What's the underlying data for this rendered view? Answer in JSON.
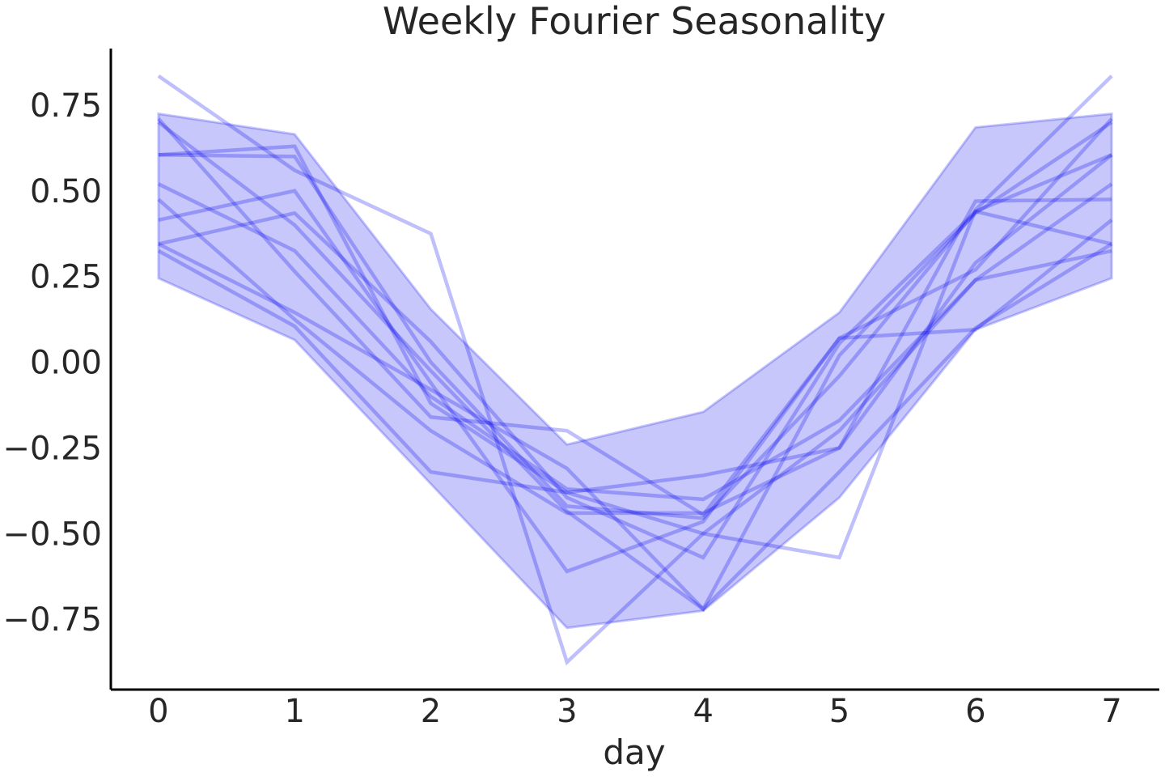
{
  "chart_data": {
    "type": "line",
    "title": "Weekly Fourier Seasonality",
    "xlabel": "day",
    "ylabel": "",
    "x": [
      0,
      1,
      2,
      3,
      4,
      5,
      6,
      7
    ],
    "xlim": [
      -0.35,
      7.35
    ],
    "ylim": [
      -0.955,
      0.915
    ],
    "x_ticks": [
      "0",
      "1",
      "2",
      "3",
      "4",
      "5",
      "6",
      "7"
    ],
    "y_ticks": [
      {
        "value": 0.75,
        "label": "0.75"
      },
      {
        "value": 0.5,
        "label": "0.50"
      },
      {
        "value": 0.25,
        "label": "0.25"
      },
      {
        "value": 0.0,
        "label": "0.00"
      },
      {
        "value": -0.25,
        "label": "−0.25"
      },
      {
        "value": -0.5,
        "label": "−0.50"
      },
      {
        "value": -0.75,
        "label": "−0.75"
      }
    ],
    "grid": false,
    "legend": "none",
    "colors": {
      "line": "#0000ee",
      "band": "#0000ee",
      "axis": "#000000",
      "text": "#262626"
    },
    "band": {
      "upper": [
        0.725,
        0.665,
        0.155,
        -0.24,
        -0.145,
        0.145,
        0.685,
        0.725
      ],
      "lower": [
        0.245,
        0.065,
        -0.355,
        -0.775,
        -0.725,
        -0.395,
        0.095,
        0.245
      ]
    },
    "series": [
      {
        "values": [
          0.835,
          0.56,
          0.375,
          -0.875,
          -0.5,
          -0.57,
          0.445,
          0.835
        ]
      },
      {
        "values": [
          0.71,
          0.265,
          -0.16,
          -0.2,
          -0.445,
          0.07,
          0.27,
          0.71
        ]
      },
      {
        "values": [
          0.7,
          0.4,
          -0.025,
          -0.435,
          -0.72,
          0.02,
          0.435,
          0.7
        ]
      },
      {
        "values": [
          0.605,
          0.6,
          0.0,
          -0.42,
          -0.455,
          -0.04,
          0.44,
          0.605
        ]
      },
      {
        "values": [
          0.605,
          0.63,
          -0.12,
          -0.38,
          -0.33,
          -0.25,
          0.29,
          0.605
        ]
      },
      {
        "values": [
          0.52,
          0.325,
          -0.1,
          -0.37,
          -0.4,
          -0.17,
          0.24,
          0.52
        ]
      },
      {
        "values": [
          0.475,
          0.125,
          -0.2,
          -0.44,
          -0.44,
          -0.25,
          0.47,
          0.475
        ]
      },
      {
        "values": [
          0.415,
          0.5,
          -0.06,
          -0.61,
          -0.465,
          0.07,
          0.095,
          0.415
        ]
      },
      {
        "values": [
          0.345,
          0.435,
          0.06,
          -0.395,
          -0.57,
          0.055,
          0.44,
          0.345
        ]
      },
      {
        "values": [
          0.345,
          0.145,
          -0.08,
          -0.31,
          -0.72,
          -0.32,
          0.1,
          0.345
        ]
      },
      {
        "values": [
          0.325,
          0.105,
          -0.32,
          -0.38,
          -0.5,
          -0.2,
          0.24,
          0.325
        ]
      }
    ]
  }
}
